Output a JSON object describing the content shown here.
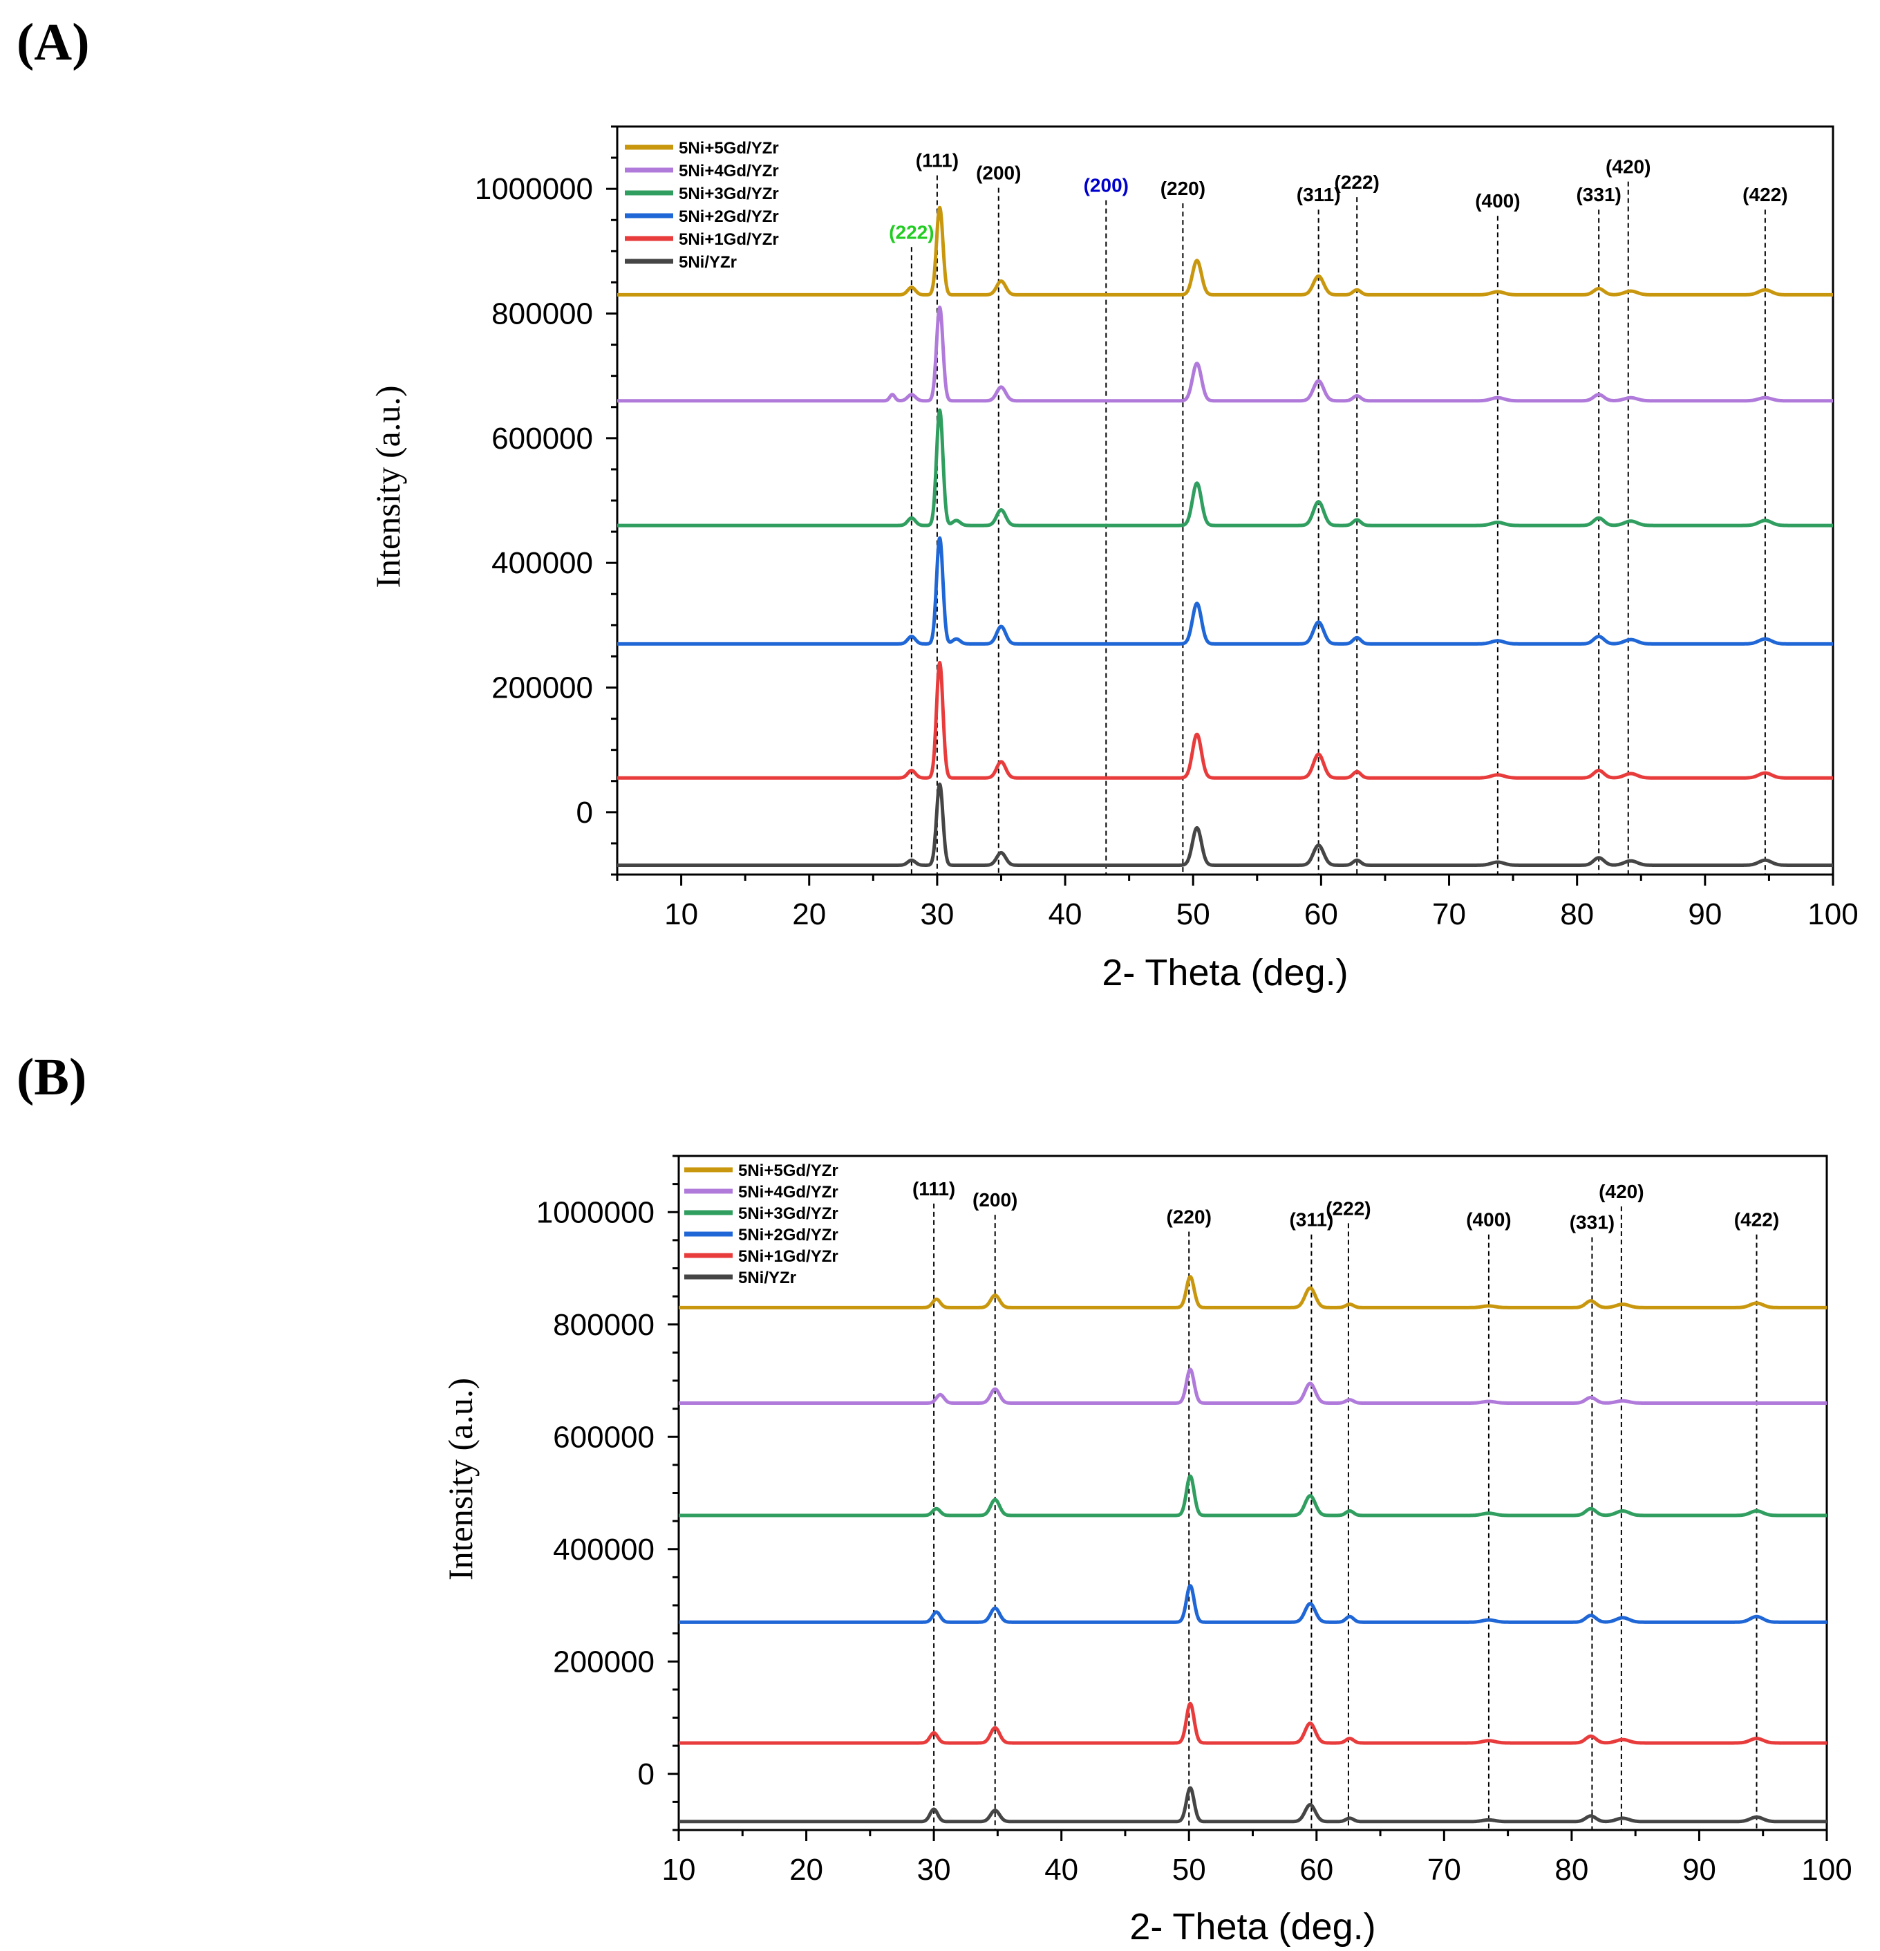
{
  "panels": {
    "a_label": "(A)",
    "b_label": "(B)"
  },
  "colors": {
    "5Ni+5Gd/YZr": "#C9970E",
    "5Ni+4Gd/YZr": "#B07ADB",
    "5Ni+3Gd/YZr": "#2F9E5F",
    "5Ni+2Gd/YZr": "#1F66D6",
    "5Ni+1Gd/YZr": "#E83B3B",
    "5Ni/YZr": "#454545"
  },
  "chart_data": [
    {
      "id": "A",
      "type": "line",
      "title": "",
      "xlabel": "2- Theta (deg.)",
      "ylabel": "Intensity (a.u.)",
      "xlim": [
        5,
        100
      ],
      "ylim": [
        -100000,
        1100000
      ],
      "xticks": [
        10,
        20,
        30,
        40,
        50,
        60,
        70,
        80,
        90,
        100
      ],
      "yticks": [
        0,
        200000,
        400000,
        600000,
        800000,
        1000000
      ],
      "legend_position": "top-left",
      "series": [
        {
          "name": "5Ni+5Gd/YZr",
          "baseline": 830000,
          "peaks": [
            [
              28.0,
              12000,
              0.3
            ],
            [
              30.2,
              140000,
              0.25
            ],
            [
              35.0,
              22000,
              0.35
            ],
            [
              50.3,
              55000,
              0.35
            ],
            [
              59.8,
              30000,
              0.4
            ],
            [
              62.8,
              8000,
              0.3
            ],
            [
              73.8,
              5000,
              0.5
            ],
            [
              81.7,
              10000,
              0.4
            ],
            [
              84.2,
              6000,
              0.5
            ],
            [
              94.7,
              8000,
              0.5
            ]
          ]
        },
        {
          "name": "5Ni+4Gd/YZr",
          "baseline": 660000,
          "peaks": [
            [
              26.5,
              10000,
              0.2
            ],
            [
              28.0,
              10000,
              0.3
            ],
            [
              30.2,
              150000,
              0.25
            ],
            [
              35.0,
              22000,
              0.35
            ],
            [
              50.3,
              60000,
              0.35
            ],
            [
              59.8,
              32000,
              0.4
            ],
            [
              62.8,
              8000,
              0.3
            ],
            [
              73.8,
              5000,
              0.5
            ],
            [
              81.7,
              10000,
              0.4
            ],
            [
              84.2,
              5000,
              0.5
            ],
            [
              94.7,
              5000,
              0.5
            ]
          ]
        },
        {
          "name": "5Ni+3Gd/YZr",
          "baseline": 460000,
          "peaks": [
            [
              28.0,
              12000,
              0.3
            ],
            [
              30.2,
              185000,
              0.25
            ],
            [
              31.5,
              8000,
              0.3
            ],
            [
              35.0,
              25000,
              0.35
            ],
            [
              50.3,
              68000,
              0.35
            ],
            [
              59.8,
              38000,
              0.4
            ],
            [
              62.8,
              9000,
              0.3
            ],
            [
              73.8,
              5000,
              0.5
            ],
            [
              81.7,
              12000,
              0.4
            ],
            [
              84.2,
              7000,
              0.5
            ],
            [
              94.7,
              8000,
              0.5
            ]
          ]
        },
        {
          "name": "5Ni+2Gd/YZr",
          "baseline": 270000,
          "peaks": [
            [
              28.0,
              12000,
              0.3
            ],
            [
              30.2,
              170000,
              0.25
            ],
            [
              31.5,
              8000,
              0.3
            ],
            [
              35.0,
              28000,
              0.35
            ],
            [
              50.3,
              65000,
              0.35
            ],
            [
              59.8,
              35000,
              0.4
            ],
            [
              62.8,
              10000,
              0.3
            ],
            [
              73.8,
              5000,
              0.5
            ],
            [
              81.7,
              12000,
              0.4
            ],
            [
              84.2,
              7000,
              0.5
            ],
            [
              94.7,
              8000,
              0.5
            ]
          ]
        },
        {
          "name": "5Ni+1Gd/YZr",
          "baseline": 55000,
          "peaks": [
            [
              28.0,
              12000,
              0.3
            ],
            [
              30.2,
              185000,
              0.25
            ],
            [
              35.0,
              26000,
              0.35
            ],
            [
              50.3,
              70000,
              0.35
            ],
            [
              59.8,
              38000,
              0.4
            ],
            [
              62.8,
              10000,
              0.3
            ],
            [
              73.8,
              5000,
              0.5
            ],
            [
              81.7,
              12000,
              0.4
            ],
            [
              84.2,
              7000,
              0.5
            ],
            [
              94.7,
              8000,
              0.5
            ]
          ]
        },
        {
          "name": "5Ni/YZr",
          "baseline": -85000,
          "peaks": [
            [
              28.0,
              8000,
              0.3
            ],
            [
              30.2,
              130000,
              0.25
            ],
            [
              35.0,
              20000,
              0.35
            ],
            [
              50.3,
              60000,
              0.35
            ],
            [
              59.8,
              32000,
              0.4
            ],
            [
              62.8,
              8000,
              0.3
            ],
            [
              73.8,
              5000,
              0.5
            ],
            [
              81.7,
              12000,
              0.4
            ],
            [
              84.2,
              7000,
              0.5
            ],
            [
              94.7,
              8000,
              0.5
            ]
          ]
        }
      ],
      "reference_lines": [
        {
          "x": 28.0,
          "label": "(222)",
          "label_y": 920000,
          "color": "#22cc22"
        },
        {
          "x": 30.0,
          "label": "(111)",
          "label_y": 1035000,
          "color": "#000000"
        },
        {
          "x": 34.8,
          "label": "(200)",
          "label_y": 1015000,
          "color": "#000000"
        },
        {
          "x": 43.2,
          "label": "(200)",
          "label_y": 995000,
          "color": "#0000cc"
        },
        {
          "x": 49.2,
          "label": "(220)",
          "label_y": 990000,
          "color": "#000000"
        },
        {
          "x": 59.8,
          "label": "(311)",
          "label_y": 980000,
          "color": "#000000"
        },
        {
          "x": 62.8,
          "label": "(222)",
          "label_y": 1000000,
          "color": "#000000"
        },
        {
          "x": 73.8,
          "label": "(400)",
          "label_y": 970000,
          "color": "#000000"
        },
        {
          "x": 81.7,
          "label": "(331)",
          "label_y": 980000,
          "color": "#000000"
        },
        {
          "x": 84.0,
          "label": "(420)",
          "label_y": 1025000,
          "color": "#000000"
        },
        {
          "x": 94.7,
          "label": "(422)",
          "label_y": 980000,
          "color": "#000000"
        }
      ]
    },
    {
      "id": "B",
      "type": "line",
      "title": "",
      "xlabel": "2- Theta (deg.)",
      "ylabel": "Intensity (a.u.)",
      "xlim": [
        10,
        100
      ],
      "ylim": [
        -100000,
        1100000
      ],
      "xticks": [
        10,
        20,
        30,
        40,
        50,
        60,
        70,
        80,
        90,
        100
      ],
      "yticks": [
        0,
        200000,
        400000,
        600000,
        800000,
        1000000
      ],
      "legend_position": "top-left",
      "series": [
        {
          "name": "5Ni+5Gd/YZr",
          "baseline": 830000,
          "peaks": [
            [
              30.2,
              15000,
              0.3
            ],
            [
              34.8,
              22000,
              0.35
            ],
            [
              50.1,
              55000,
              0.3
            ],
            [
              59.5,
              35000,
              0.4
            ],
            [
              62.6,
              6000,
              0.3
            ],
            [
              73.5,
              3000,
              0.5
            ],
            [
              81.5,
              12000,
              0.4
            ],
            [
              84.0,
              6000,
              0.5
            ],
            [
              94.5,
              8000,
              0.5
            ]
          ]
        },
        {
          "name": "5Ni+4Gd/YZr",
          "baseline": 660000,
          "peaks": [
            [
              30.5,
              15000,
              0.3
            ],
            [
              34.8,
              25000,
              0.35
            ],
            [
              50.1,
              60000,
              0.3
            ],
            [
              59.5,
              35000,
              0.4
            ],
            [
              62.6,
              6000,
              0.3
            ],
            [
              73.5,
              3000,
              0.5
            ],
            [
              81.5,
              10000,
              0.4
            ],
            [
              84.0,
              4000,
              0.5
            ]
          ]
        },
        {
          "name": "5Ni+3Gd/YZr",
          "baseline": 460000,
          "peaks": [
            [
              30.2,
              12000,
              0.3
            ],
            [
              34.8,
              28000,
              0.35
            ],
            [
              50.1,
              70000,
              0.3
            ],
            [
              59.5,
              35000,
              0.4
            ],
            [
              62.6,
              8000,
              0.3
            ],
            [
              73.5,
              4000,
              0.5
            ],
            [
              81.5,
              12000,
              0.4
            ],
            [
              84.0,
              8000,
              0.5
            ],
            [
              94.5,
              8000,
              0.5
            ]
          ]
        },
        {
          "name": "5Ni+2Gd/YZr",
          "baseline": 270000,
          "peaks": [
            [
              30.2,
              18000,
              0.3
            ],
            [
              34.8,
              25000,
              0.35
            ],
            [
              50.1,
              65000,
              0.3
            ],
            [
              59.5,
              33000,
              0.4
            ],
            [
              62.6,
              10000,
              0.3
            ],
            [
              73.5,
              4000,
              0.5
            ],
            [
              81.5,
              12000,
              0.4
            ],
            [
              84.0,
              8000,
              0.5
            ],
            [
              94.5,
              10000,
              0.5
            ]
          ]
        },
        {
          "name": "5Ni+1Gd/YZr",
          "baseline": 55000,
          "peaks": [
            [
              30.0,
              18000,
              0.3
            ],
            [
              34.8,
              27000,
              0.35
            ],
            [
              50.1,
              70000,
              0.3
            ],
            [
              59.5,
              35000,
              0.4
            ],
            [
              62.6,
              8000,
              0.3
            ],
            [
              73.5,
              4000,
              0.5
            ],
            [
              81.5,
              12000,
              0.4
            ],
            [
              84.0,
              6000,
              0.5
            ],
            [
              94.5,
              8000,
              0.5
            ]
          ]
        },
        {
          "name": "5Ni/YZr",
          "baseline": -85000,
          "peaks": [
            [
              30.0,
              22000,
              0.3
            ],
            [
              34.8,
              20000,
              0.35
            ],
            [
              50.1,
              60000,
              0.3
            ],
            [
              59.5,
              30000,
              0.4
            ],
            [
              62.6,
              6000,
              0.3
            ],
            [
              73.5,
              3000,
              0.5
            ],
            [
              81.5,
              10000,
              0.4
            ],
            [
              84.0,
              6000,
              0.5
            ],
            [
              94.5,
              8000,
              0.5
            ]
          ]
        }
      ],
      "reference_lines": [
        {
          "x": 30.0,
          "label": "(111)",
          "label_y": 1030000,
          "color": "#000000"
        },
        {
          "x": 34.8,
          "label": "(200)",
          "label_y": 1010000,
          "color": "#000000"
        },
        {
          "x": 50.0,
          "label": "(220)",
          "label_y": 980000,
          "color": "#000000"
        },
        {
          "x": 59.6,
          "label": "(311)",
          "label_y": 975000,
          "color": "#000000"
        },
        {
          "x": 62.5,
          "label": "(222)",
          "label_y": 995000,
          "color": "#000000"
        },
        {
          "x": 73.5,
          "label": "(400)",
          "label_y": 975000,
          "color": "#000000"
        },
        {
          "x": 81.6,
          "label": "(331)",
          "label_y": 970000,
          "color": "#000000"
        },
        {
          "x": 83.9,
          "label": "(420)",
          "label_y": 1025000,
          "color": "#000000"
        },
        {
          "x": 94.5,
          "label": "(422)",
          "label_y": 975000,
          "color": "#000000"
        }
      ]
    }
  ]
}
